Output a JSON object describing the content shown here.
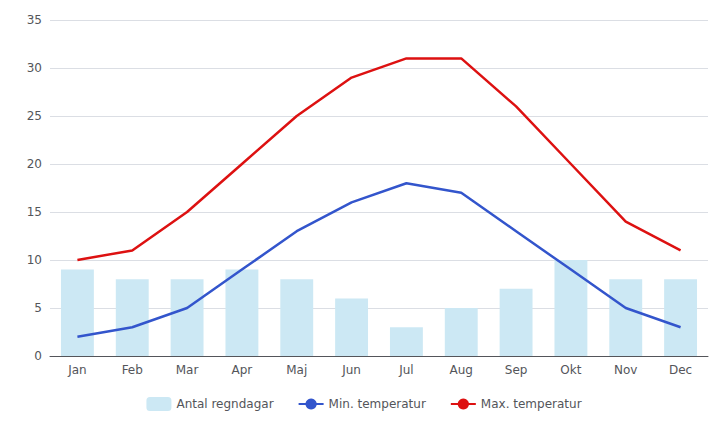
{
  "chart_data": {
    "type": "bar",
    "categories": [
      "Jan",
      "Feb",
      "Mar",
      "Apr",
      "Maj",
      "Jun",
      "Jul",
      "Aug",
      "Sep",
      "Okt",
      "Nov",
      "Dec"
    ],
    "series": [
      {
        "name": "Antal regndagar",
        "type": "bar",
        "color": "#cce8f4",
        "values": [
          9,
          8,
          8,
          9,
          8,
          6,
          3,
          5,
          7,
          10,
          8,
          8
        ]
      },
      {
        "name": "Min. temperatur",
        "type": "line",
        "color": "#3355cc",
        "values": [
          2,
          3,
          5,
          9,
          13,
          16,
          18,
          17,
          13,
          9,
          5,
          3
        ]
      },
      {
        "name": "Max. temperatur",
        "type": "line",
        "color": "#dd1111",
        "values": [
          10,
          11,
          15,
          20,
          25,
          29,
          31,
          31,
          26,
          20,
          14,
          11
        ]
      }
    ],
    "ylim": [
      0,
      35
    ],
    "yticks": [
      0,
      5,
      10,
      15,
      20,
      25,
      30,
      35
    ],
    "grid": true,
    "legend": "bottom"
  }
}
